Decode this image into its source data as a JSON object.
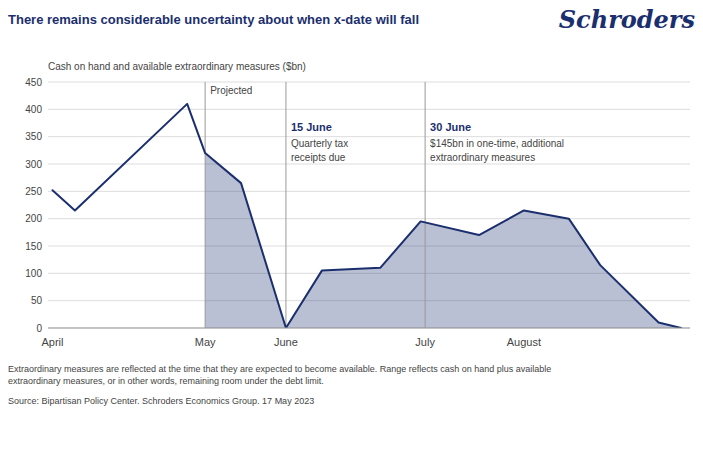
{
  "chart_data": {
    "type": "line",
    "title": "There remains considerable uncertainty about when x-date will fall",
    "brand": "Schroders",
    "y_label": "Cash on hand and available extraordinary measures ($bn)",
    "notes": [
      "Extraordinary measures are reflected at the time that they are expected to become available. Range reflects cash on hand plus available\nextraordinary measures, or in other words, remaining room under the debt limit.",
      "Source: Bipartisan Policy Center. Schroders Economics Group. 17 May 2023"
    ],
    "x": [
      0,
      5,
      30,
      34,
      42,
      52,
      60,
      73,
      82,
      95,
      105,
      115,
      122,
      135,
      140
    ],
    "series": [
      {
        "color": "#1b2f6e",
        "values": [
          252,
          215,
          410,
          320,
          265,
          0,
          105,
          110,
          195,
          170,
          215,
          200,
          115,
          10,
          0
        ]
      }
    ],
    "xlim": [
      -1,
      142
    ],
    "xticks": [
      {
        "value": 0,
        "label": "April"
      },
      {
        "value": 34,
        "label": "May"
      },
      {
        "value": 52,
        "label": "June"
      },
      {
        "value": 83,
        "label": "July"
      },
      {
        "value": 105,
        "label": "August"
      }
    ],
    "ylim": [
      0,
      450
    ],
    "yticks": [
      0,
      50,
      100,
      150,
      200,
      250,
      300,
      350,
      400,
      450
    ],
    "grid": true,
    "projection": {
      "x": 34,
      "label": "Projected"
    },
    "annotations": [
      {
        "x": 52,
        "title": "15 June",
        "text": "Quarterly tax\nreceipts due"
      },
      {
        "x": 83,
        "title": "30 June",
        "text": "$145bn in one-time, additional\nextraordinary measures"
      }
    ]
  }
}
